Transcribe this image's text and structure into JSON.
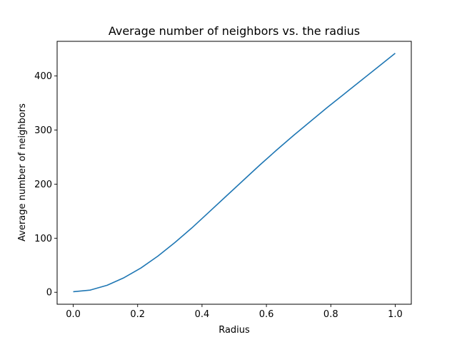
{
  "chart_data": {
    "type": "line",
    "title": "Average number of neighbors vs. the radius",
    "xlabel": "Radius",
    "ylabel": "Average number of neighbors",
    "xlim": [
      -0.05,
      1.05
    ],
    "ylim": [
      -22.1,
      464.1
    ],
    "x_ticks": [
      0.0,
      0.2,
      0.4,
      0.6,
      0.8,
      1.0
    ],
    "x_tick_labels": [
      "0.0",
      "0.2",
      "0.4",
      "0.6",
      "0.8",
      "1.0"
    ],
    "y_ticks": [
      0,
      100,
      200,
      300,
      400
    ],
    "y_tick_labels": [
      "0",
      "100",
      "200",
      "300",
      "400"
    ],
    "grid": false,
    "series": [
      {
        "color": "#1f77b4",
        "x": [
          0.0,
          0.0526,
          0.1053,
          0.1579,
          0.2105,
          0.2632,
          0.3158,
          0.3684,
          0.4211,
          0.4737,
          0.5263,
          0.5789,
          0.6316,
          0.6842,
          0.7368,
          0.7895,
          0.8421,
          0.8947,
          0.9474,
          1.0
        ],
        "y": [
          1,
          4,
          13,
          27,
          45,
          67,
          92,
          119,
          148,
          177,
          206,
          235,
          263,
          290,
          316,
          342,
          367,
          392,
          417,
          442
        ]
      }
    ]
  }
}
